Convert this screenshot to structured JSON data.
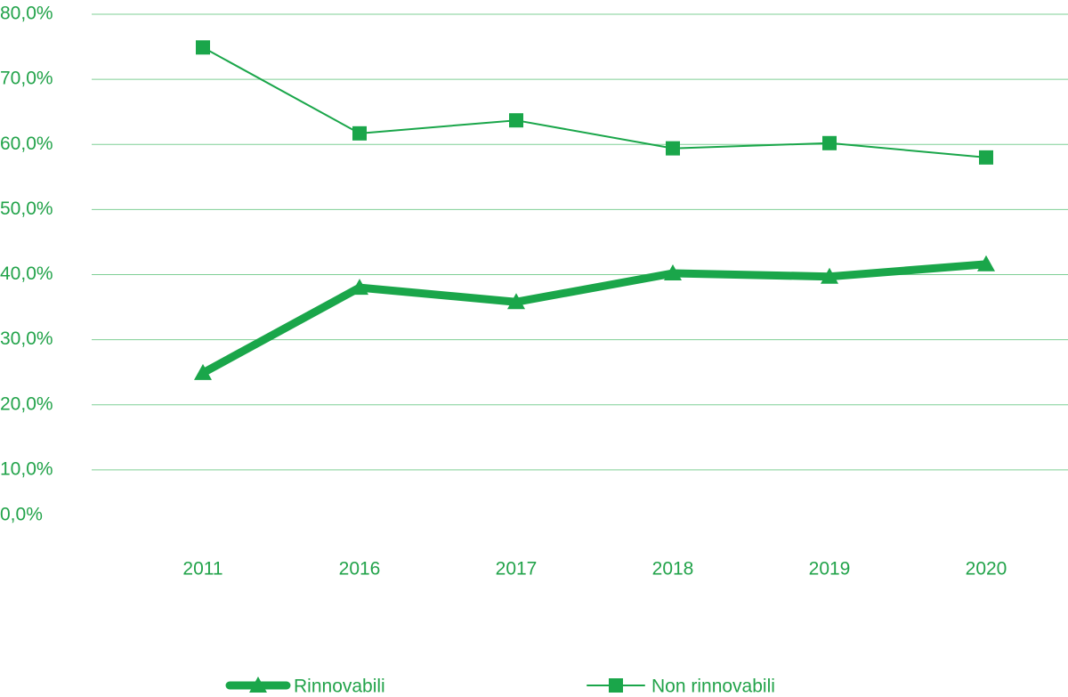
{
  "chart_data": {
    "type": "line",
    "categories": [
      "2011",
      "2016",
      "2017",
      "2018",
      "2019",
      "2020"
    ],
    "series": [
      {
        "name": "Rinnovabili",
        "color": "#1aa64a",
        "marker": "triangle",
        "values": [
          24.9,
          38.0,
          35.8,
          40.2,
          39.7,
          41.6
        ]
      },
      {
        "name": "Non rinnovabili",
        "color": "#1aa64a",
        "marker": "square",
        "values": [
          74.9,
          61.7,
          63.7,
          59.4,
          60.2,
          58.0
        ]
      }
    ],
    "ylim": [
      0,
      80
    ],
    "yticks": [
      {
        "value": 0,
        "label": "0,0%"
      },
      {
        "value": 10,
        "label": "10,0%"
      },
      {
        "value": 20,
        "label": "20,0%"
      },
      {
        "value": 30,
        "label": "30,0%"
      },
      {
        "value": 40,
        "label": "40,0%"
      },
      {
        "value": 50,
        "label": "50,0%"
      },
      {
        "value": 60,
        "label": "60,0%"
      },
      {
        "value": 70,
        "label": "70,0%"
      },
      {
        "value": 80,
        "label": "80,0%"
      }
    ],
    "grid": true,
    "legend": "bottom"
  }
}
